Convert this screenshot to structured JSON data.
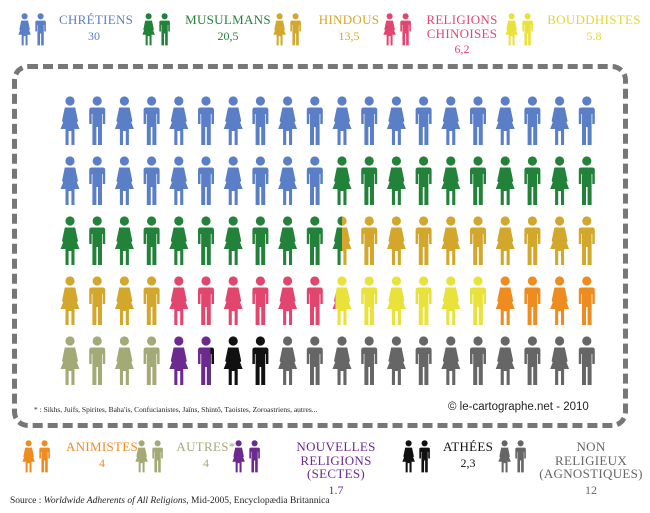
{
  "chart_data": {
    "type": "pictogram",
    "unit": "figures",
    "series": [
      {
        "name": "CHRÉTIENS",
        "value": "30",
        "count": 30,
        "color": "#5b7fc6"
      },
      {
        "name": "MUSULMANS",
        "value": "20,5",
        "count": 20.5,
        "color": "#23823a"
      },
      {
        "name": "HINDOUS",
        "value": "13,5",
        "count": 13.5,
        "color": "#d2a72c"
      },
      {
        "name": "RELIGIONS CHINOISES",
        "value": "6,2",
        "count": 6.2,
        "color": "#e2466f"
      },
      {
        "name": "BOUDDHISTES",
        "value": "5.8",
        "count": 5.8,
        "color": "#e8e23a"
      },
      {
        "name": "ANIMISTES",
        "value": "4",
        "count": 4,
        "color": "#ee8c20"
      },
      {
        "name": "AUTRES*",
        "value": "4",
        "count": 4,
        "color": "#a3aa76"
      },
      {
        "name": "NOUVELLES RELIGIONS (SECTES)",
        "value": "1.7",
        "count": 1.7,
        "color": "#6d2a8e"
      },
      {
        "name": "ATHÉES",
        "value": "2,3",
        "count": 2.3,
        "color": "#111111"
      },
      {
        "name": "NON RELIGIEUX (AGNOSTIQUES)",
        "value": "12",
        "count": 12,
        "color": "#666666"
      }
    ]
  },
  "legend_top": [
    {
      "name": "CHRÉTIENS",
      "value": "30",
      "color": "#5b7fc6"
    },
    {
      "name": "MUSULMANS",
      "value": "20,5",
      "color": "#23823a"
    },
    {
      "name": "HINDOUS",
      "value": "13,5",
      "color": "#d2a72c"
    },
    {
      "name": "RELIGIONS CHINOISES",
      "value": "6,2",
      "color": "#e2466f"
    },
    {
      "name": "BOUDDHISTES",
      "value": "5.8",
      "color": "#e8e23a"
    }
  ],
  "legend_bottom": [
    {
      "name": "ANIMISTES",
      "value": "4",
      "color": "#ee8c20"
    },
    {
      "name": "AUTRES*",
      "value": "4",
      "color": "#a3aa76"
    },
    {
      "name": "NOUVELLES RELIGIONS (SECTES)",
      "value": "1.7",
      "color": "#6d2a8e"
    },
    {
      "name": "ATHÉES",
      "value": "2,3",
      "color": "#111111"
    },
    {
      "name": "NON RELIGIEUX (AGNOSTIQUES)",
      "value": "12",
      "color": "#666666"
    }
  ],
  "footnote": "* : Sikhs, Juifs, Spirites, Baha'is, Confucianistes, Jaïns, Shintô, Taoistes, Zoroastriens, autres...",
  "credit": "© le-cartographe.net - 2010",
  "source": {
    "prefix": "Source : ",
    "title": "Worldwide Adherents of All Religions",
    "suffix": ", Mid-2005, Encyclopædia Britannica"
  }
}
